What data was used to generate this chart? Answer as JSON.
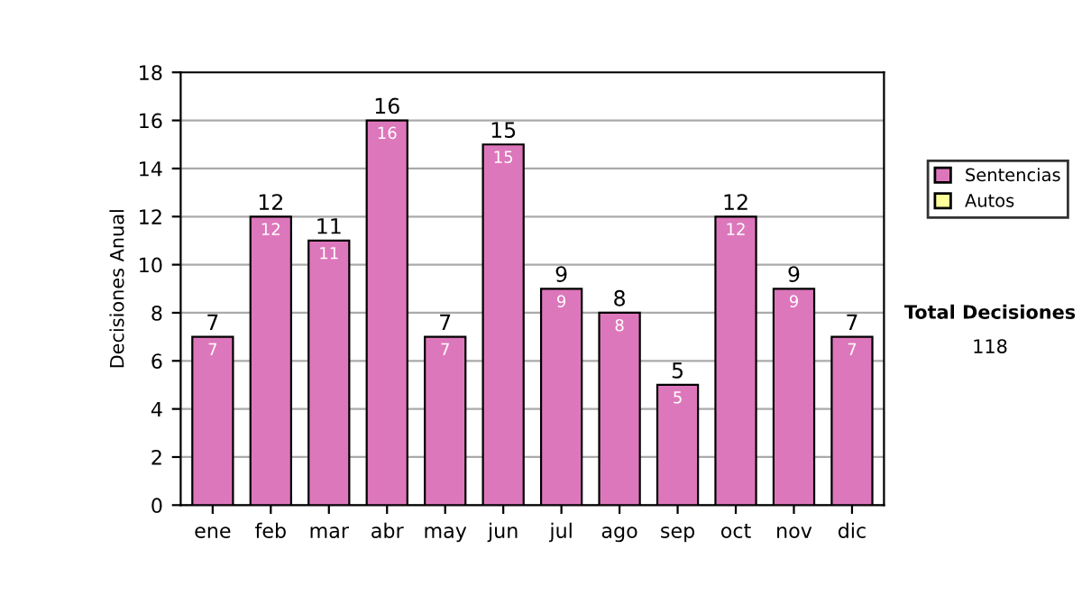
{
  "chart_data": {
    "type": "bar",
    "ylabel": "Decisiones Anual",
    "categories": [
      "ene",
      "feb",
      "mar",
      "abr",
      "may",
      "jun",
      "jul",
      "ago",
      "sep",
      "oct",
      "nov",
      "dic"
    ],
    "series": [
      {
        "name": "Sentencias",
        "color": "#dd77bb",
        "values": [
          7,
          12,
          11,
          16,
          7,
          15,
          9,
          8,
          5,
          12,
          9,
          7
        ],
        "value_labels": [
          "7",
          "12",
          "11",
          "16",
          "7",
          "15",
          "9",
          "8",
          "5",
          "12",
          "9",
          "7"
        ]
      },
      {
        "name": "Autos",
        "color": "#ffff99",
        "values": [
          null,
          null,
          null,
          null,
          null,
          null,
          null,
          null,
          null,
          null,
          null,
          null
        ]
      }
    ],
    "stacked": true,
    "totals": [
      "7",
      "12",
      "11",
      "16",
      "7",
      "15",
      "9",
      "8",
      "5",
      "12",
      "9",
      "7"
    ],
    "ylim": [
      0,
      18
    ],
    "yticks": [
      0,
      2,
      4,
      6,
      8,
      10,
      12,
      14,
      16,
      18
    ],
    "grid": "y",
    "legend": "right",
    "annotations": [
      "Total Decisiones",
      "118"
    ]
  }
}
